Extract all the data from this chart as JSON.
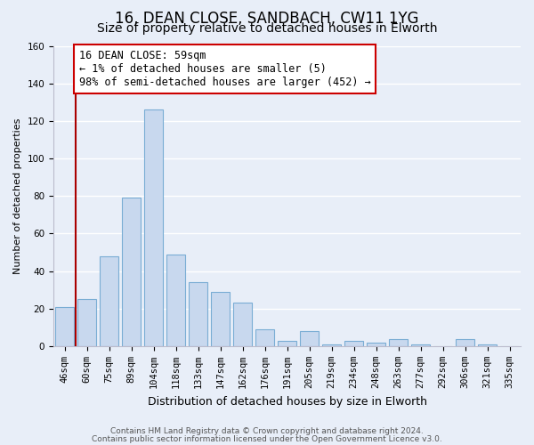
{
  "title1": "16, DEAN CLOSE, SANDBACH, CW11 1YG",
  "title2": "Size of property relative to detached houses in Elworth",
  "xlabel": "Distribution of detached houses by size in Elworth",
  "ylabel": "Number of detached properties",
  "bar_labels": [
    "46sqm",
    "60sqm",
    "75sqm",
    "89sqm",
    "104sqm",
    "118sqm",
    "133sqm",
    "147sqm",
    "162sqm",
    "176sqm",
    "191sqm",
    "205sqm",
    "219sqm",
    "234sqm",
    "248sqm",
    "263sqm",
    "277sqm",
    "292sqm",
    "306sqm",
    "321sqm",
    "335sqm"
  ],
  "bar_values": [
    21,
    25,
    48,
    79,
    126,
    49,
    34,
    29,
    23,
    9,
    3,
    8,
    1,
    3,
    2,
    4,
    1,
    0,
    4,
    1,
    0
  ],
  "bar_color": "#c8d8ee",
  "bar_edge_color": "#7aadd4",
  "annotation_line1": "16 DEAN CLOSE: 59sqm",
  "annotation_line2": "← 1% of detached houses are smaller (5)",
  "annotation_line3": "98% of semi-detached houses are larger (452) →",
  "annotation_box_color": "white",
  "annotation_box_edge_color": "#cc0000",
  "vline_color": "#aa0000",
  "vline_x_index": 1,
  "ylim": [
    0,
    160
  ],
  "yticks": [
    0,
    20,
    40,
    60,
    80,
    100,
    120,
    140,
    160
  ],
  "footer1": "Contains HM Land Registry data © Crown copyright and database right 2024.",
  "footer2": "Contains public sector information licensed under the Open Government Licence v3.0.",
  "bg_color": "#e8eef8",
  "grid_color": "#ffffff",
  "title1_fontsize": 12,
  "title2_fontsize": 10,
  "xlabel_fontsize": 9,
  "ylabel_fontsize": 8,
  "tick_fontsize": 7.5,
  "annotation_fontsize": 8.5,
  "footer_fontsize": 6.5
}
